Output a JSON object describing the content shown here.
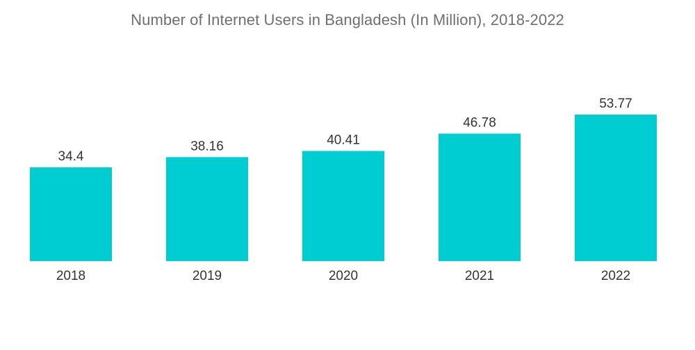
{
  "chart_data": {
    "type": "bar",
    "title": "Number of Internet Users in Bangladesh (In Million), 2018-2022",
    "xlabel": "",
    "ylabel": "",
    "categories": [
      "2018",
      "2019",
      "2020",
      "2021",
      "2022"
    ],
    "values": [
      34.4,
      38.16,
      40.41,
      46.78,
      53.77
    ],
    "value_labels": [
      "34.4",
      "38.16",
      "40.41",
      "46.78",
      "53.77"
    ],
    "ylim": [
      0,
      60
    ],
    "grid": false,
    "legend": "none",
    "bar_color": "#00cdd1"
  }
}
